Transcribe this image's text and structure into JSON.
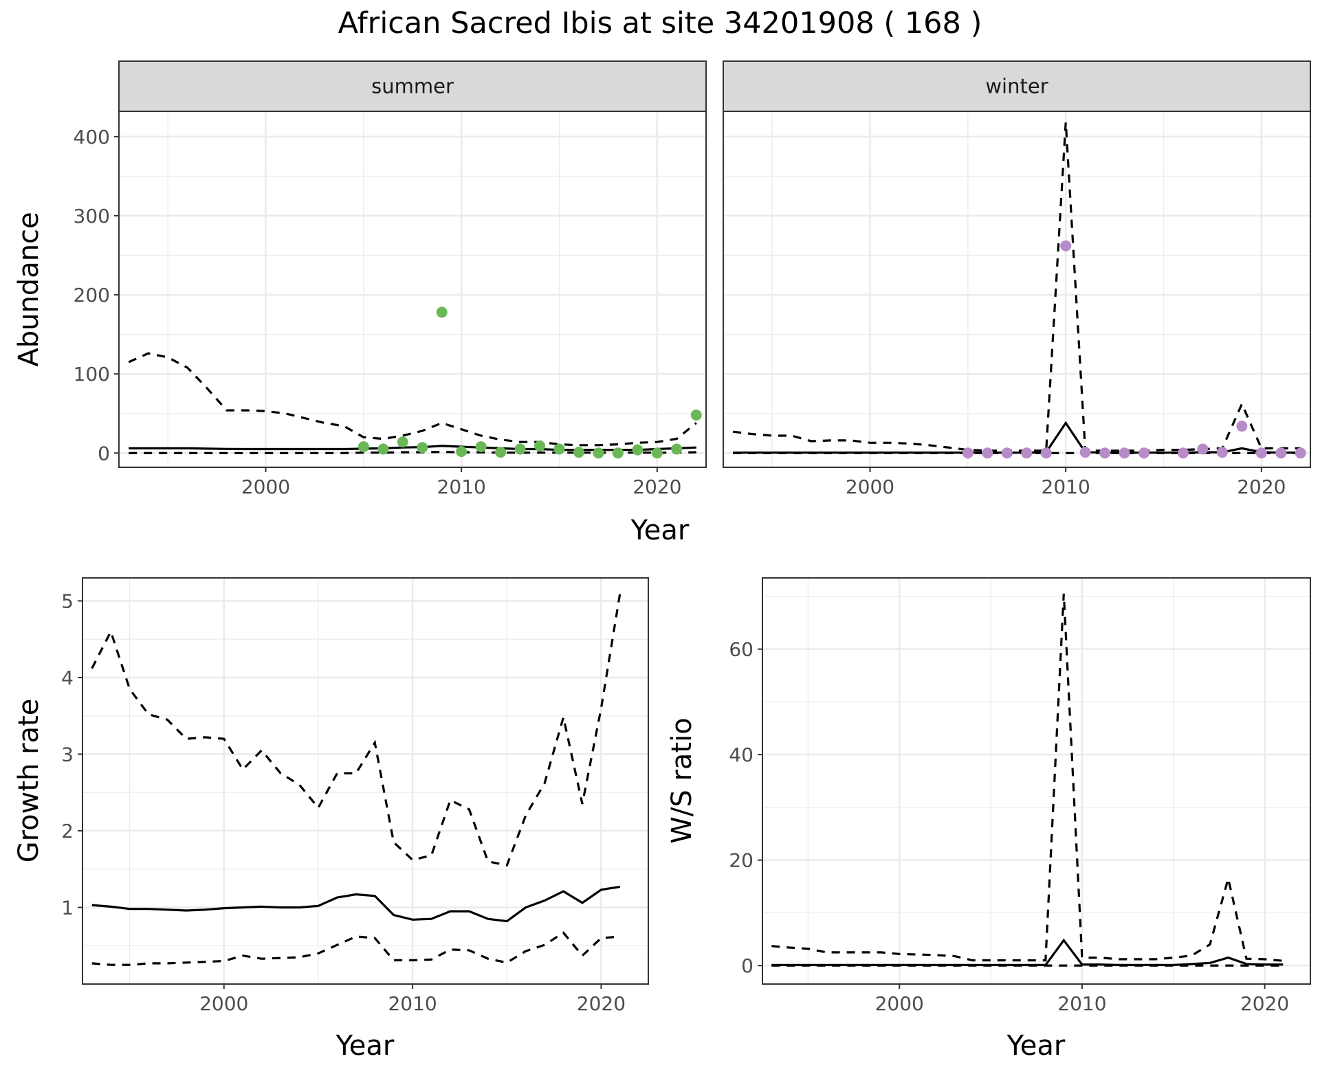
{
  "title": "African Sacred Ibis at site 34201908 ( 168 )",
  "colors": {
    "summer_points": "#6ab756",
    "winter_points": "#b78bc8",
    "lines": "#000000"
  },
  "chart_data": [
    {
      "id": "abundance",
      "type": "line",
      "facets": [
        "summer",
        "winter"
      ],
      "xlabel": "Year",
      "ylabel": "Abundance",
      "xlim": [
        1992.5,
        2022.5
      ],
      "ylim": [
        -18,
        432
      ],
      "xticks": [
        2000,
        2010,
        2020
      ],
      "yticks": [
        0,
        100,
        200,
        300,
        400
      ],
      "panels": [
        {
          "facet": "summer",
          "point_color": "#6ab756",
          "x": [
            1993,
            1994,
            1995,
            1996,
            1997,
            1998,
            1999,
            2000,
            2001,
            2002,
            2003,
            2004,
            2005,
            2006,
            2007,
            2008,
            2009,
            2010,
            2011,
            2012,
            2013,
            2014,
            2015,
            2016,
            2017,
            2018,
            2019,
            2020,
            2021,
            2022
          ],
          "mean": [
            6,
            6,
            6,
            6,
            5.5,
            5.2,
            5,
            5,
            5,
            5,
            5,
            5,
            5.5,
            6,
            7,
            7.5,
            9,
            8,
            7,
            6,
            5,
            5,
            4,
            4,
            4,
            4,
            4,
            5,
            6,
            7
          ],
          "upper": [
            115,
            126,
            121,
            108,
            82,
            54,
            54,
            53,
            50,
            44,
            38,
            34,
            20,
            18,
            22,
            28,
            38,
            30,
            22,
            17,
            14,
            14,
            11,
            10,
            10,
            11,
            13,
            14,
            18,
            38
          ],
          "lower": [
            0,
            0,
            0,
            0,
            0,
            0,
            0,
            0,
            0,
            0,
            0,
            0,
            0.5,
            0.5,
            1,
            1,
            1.5,
            1,
            1,
            0.5,
            0.5,
            0.5,
            0.5,
            0.5,
            0.5,
            0.5,
            0.5,
            0.5,
            0.5,
            1
          ],
          "points": {
            "x": [
              2005,
              2006,
              2007,
              2008,
              2009,
              2010,
              2011,
              2012,
              2013,
              2014,
              2015,
              2016,
              2017,
              2018,
              2019,
              2020,
              2021,
              2022
            ],
            "y": [
              8,
              5,
              14,
              7,
              178,
              2,
              8,
              1,
              5,
              9,
              5,
              1,
              0,
              0,
              4,
              0,
              5,
              48
            ]
          }
        },
        {
          "facet": "winter",
          "point_color": "#b78bc8",
          "x": [
            1993,
            1994,
            1995,
            1996,
            1997,
            1998,
            1999,
            2000,
            2001,
            2002,
            2003,
            2004,
            2005,
            2006,
            2007,
            2008,
            2009,
            2010,
            2011,
            2012,
            2013,
            2014,
            2015,
            2016,
            2017,
            2018,
            2019,
            2020,
            2021,
            2022
          ],
          "mean": [
            0.5,
            0.5,
            0.5,
            0.5,
            0.5,
            0.5,
            0.5,
            0.5,
            0.5,
            0.5,
            0.5,
            0.5,
            0.5,
            0.5,
            0.5,
            0.5,
            1,
            38,
            1,
            0.5,
            0.5,
            0.5,
            0.5,
            0.5,
            1,
            1,
            6,
            1,
            0.5,
            0.5
          ],
          "upper": [
            27,
            24,
            22,
            22,
            15,
            16,
            16,
            13,
            13,
            12,
            10,
            7,
            4,
            3,
            3,
            3,
            3,
            418,
            3,
            3,
            3,
            3,
            4,
            4,
            5,
            6,
            62,
            6,
            6,
            6
          ],
          "lower": [
            0,
            0,
            0,
            0,
            0,
            0,
            0,
            0,
            0,
            0,
            0,
            0,
            0,
            0,
            0,
            0,
            0,
            0,
            0,
            0,
            0,
            0,
            0,
            0,
            0,
            0,
            0,
            0,
            0,
            0
          ],
          "points": {
            "x": [
              2005,
              2006,
              2007,
              2008,
              2009,
              2010,
              2011,
              2012,
              2013,
              2014,
              2016,
              2017,
              2018,
              2019,
              2020,
              2021,
              2022
            ],
            "y": [
              0,
              0,
              0,
              0,
              0,
              262,
              1,
              0,
              0,
              0,
              0,
              5,
              1,
              34,
              0,
              0,
              0
            ]
          }
        }
      ]
    },
    {
      "id": "growth",
      "type": "line",
      "xlabel": "Year",
      "ylabel": "Growth rate",
      "xlim": [
        1992.5,
        2022.5
      ],
      "ylim": [
        0,
        5.3
      ],
      "xticks": [
        2000,
        2010,
        2020
      ],
      "yticks": [
        1,
        2,
        3,
        4,
        5
      ],
      "x": [
        1993,
        1994,
        1995,
        1996,
        1997,
        1998,
        1999,
        2000,
        2001,
        2002,
        2003,
        2004,
        2005,
        2006,
        2007,
        2008,
        2009,
        2010,
        2011,
        2012,
        2013,
        2014,
        2015,
        2016,
        2017,
        2018,
        2019,
        2020,
        2021
      ],
      "mean": [
        1.03,
        1.01,
        0.98,
        0.98,
        0.97,
        0.96,
        0.97,
        0.99,
        1.0,
        1.01,
        1.0,
        1.0,
        1.02,
        1.13,
        1.17,
        1.15,
        0.9,
        0.84,
        0.85,
        0.95,
        0.95,
        0.85,
        0.82,
        1.0,
        1.09,
        1.21,
        1.06,
        1.23,
        1.27
      ],
      "upper": [
        4.12,
        4.6,
        3.85,
        3.52,
        3.45,
        3.2,
        3.22,
        3.2,
        2.8,
        3.05,
        2.75,
        2.6,
        2.3,
        2.75,
        2.75,
        3.15,
        1.85,
        1.62,
        1.68,
        2.4,
        2.28,
        1.6,
        1.55,
        2.2,
        2.62,
        3.48,
        2.35,
        3.6,
        5.1
      ],
      "lower": [
        0.27,
        0.25,
        0.25,
        0.27,
        0.27,
        0.28,
        0.29,
        0.3,
        0.37,
        0.33,
        0.34,
        0.35,
        0.4,
        0.51,
        0.62,
        0.6,
        0.31,
        0.31,
        0.32,
        0.45,
        0.44,
        0.33,
        0.28,
        0.43,
        0.51,
        0.67,
        0.37,
        0.6,
        0.62
      ]
    },
    {
      "id": "ratio",
      "type": "line",
      "xlabel": "Year",
      "ylabel": "W/S ratio",
      "xlim": [
        1992.5,
        2022.5
      ],
      "ylim": [
        -3.5,
        73.5
      ],
      "xticks": [
        2000,
        2010,
        2020
      ],
      "yticks": [
        0,
        20,
        40,
        60
      ],
      "x": [
        1993,
        1994,
        1995,
        1996,
        1997,
        1998,
        1999,
        2000,
        2001,
        2002,
        2003,
        2004,
        2005,
        2006,
        2007,
        2008,
        2009,
        2010,
        2011,
        2012,
        2013,
        2014,
        2015,
        2016,
        2017,
        2018,
        2019,
        2020,
        2021
      ],
      "mean": [
        0.1,
        0.1,
        0.1,
        0.1,
        0.1,
        0.1,
        0.1,
        0.1,
        0.1,
        0.1,
        0.1,
        0.1,
        0.1,
        0.1,
        0.1,
        0.1,
        4.8,
        0.2,
        0.2,
        0.1,
        0.1,
        0.1,
        0.1,
        0.3,
        0.5,
        1.5,
        0.3,
        0.2,
        0.2
      ],
      "upper": [
        3.7,
        3.4,
        3.2,
        2.5,
        2.5,
        2.5,
        2.5,
        2.2,
        2.1,
        2.0,
        1.8,
        1.0,
        1.0,
        1.0,
        1.0,
        1.0,
        70.5,
        1.5,
        1.5,
        1.2,
        1.2,
        1.2,
        1.5,
        1.9,
        4.0,
        16.5,
        1.3,
        1.2,
        0.9
      ],
      "lower": [
        0,
        0,
        0,
        0,
        0,
        0,
        0,
        0,
        0,
        0,
        0,
        0,
        0,
        0,
        0,
        0,
        0,
        0,
        0,
        0,
        0,
        0,
        0,
        0,
        0,
        0,
        0,
        0,
        0
      ]
    }
  ]
}
